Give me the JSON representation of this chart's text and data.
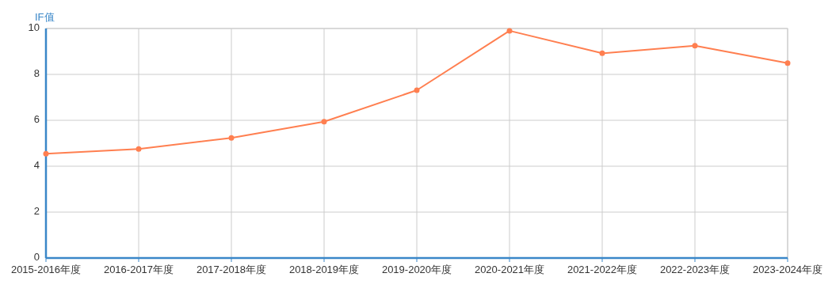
{
  "chart_data": {
    "type": "line",
    "ylabel": "IF值",
    "categories": [
      "2015-2016年度",
      "2016-2017年度",
      "2017-2018年度",
      "2018-2019年度",
      "2019-2020年度",
      "2020-2021年度",
      "2021-2022年度",
      "2022-2023年度",
      "2023-2024年度"
    ],
    "series": [
      {
        "color": "#ff7f50",
        "values": [
          4.54,
          4.75,
          5.23,
          5.94,
          7.31,
          9.9,
          8.92,
          9.25,
          8.49
        ]
      }
    ],
    "ylim": [
      0,
      10
    ],
    "yticks": [
      0,
      2,
      4,
      6,
      8,
      10
    ],
    "grid": true,
    "marker": "circle",
    "line_style": "solid"
  }
}
